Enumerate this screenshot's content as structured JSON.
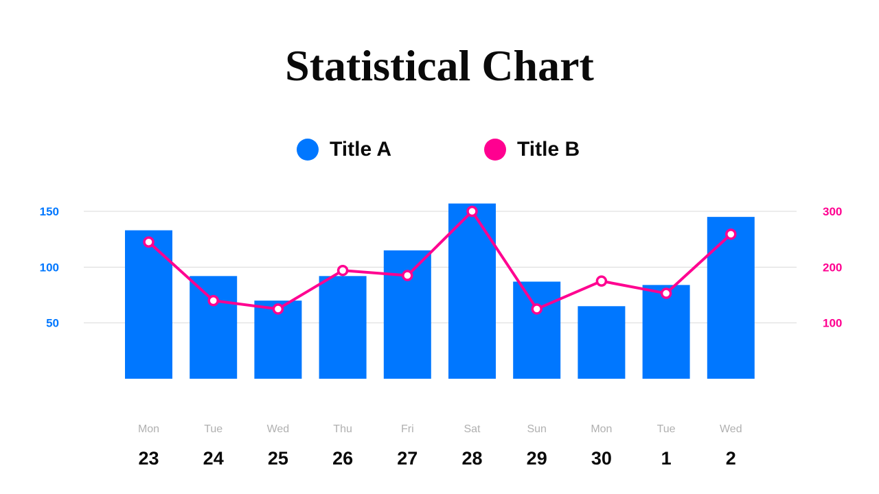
{
  "chart_data": {
    "type": "bar",
    "title": "Statistical Chart",
    "categories": [
      "Mon",
      "Tue",
      "Wed",
      "Thu",
      "Fri",
      "Sat",
      "Sun",
      "Mon",
      "Tue",
      "Wed"
    ],
    "dates": [
      "23",
      "24",
      "25",
      "26",
      "27",
      "28",
      "29",
      "30",
      "1",
      "2"
    ],
    "series": [
      {
        "name": "Title A",
        "type": "bar",
        "axis": "left",
        "color": "#0077ff",
        "values": [
          133,
          92,
          70,
          92,
          115,
          157,
          87,
          65,
          84,
          145
        ]
      },
      {
        "name": "Title B",
        "type": "line",
        "axis": "right",
        "color": "#ff0090",
        "values": [
          245,
          140,
          125,
          194,
          185,
          300,
          125,
          175,
          153,
          259
        ]
      }
    ],
    "y_left": {
      "ticks": [
        50,
        100,
        150
      ],
      "range": [
        0,
        150
      ],
      "color": "#0077ff"
    },
    "y_right": {
      "ticks": [
        100,
        200,
        300
      ],
      "range": [
        0,
        300
      ],
      "color": "#ff0090"
    },
    "grid": true,
    "legend_position": "top-center"
  }
}
